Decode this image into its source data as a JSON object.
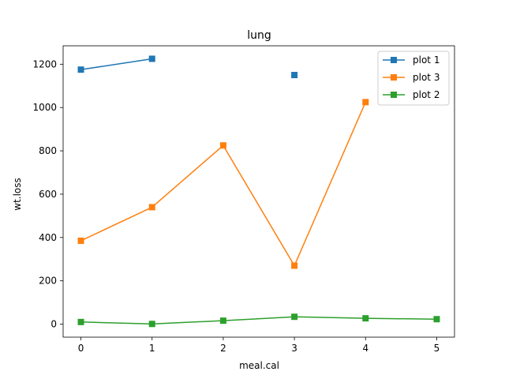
{
  "chart_data": {
    "type": "line",
    "title": "lung",
    "xlabel": "meal.cal",
    "ylabel": "wt.loss",
    "x": [
      0,
      1,
      2,
      3,
      4,
      5
    ],
    "xlim": [
      -0.25,
      5.25
    ],
    "ylim": [
      -60,
      1285
    ],
    "xticks": [
      0,
      1,
      2,
      3,
      4,
      5
    ],
    "yticks": [
      0,
      200,
      400,
      600,
      800,
      1000,
      1200
    ],
    "grid": false,
    "legend_position": "top-right",
    "series": [
      {
        "name": "plot 1",
        "color": "#1f77b4",
        "marker": "square",
        "values": [
          1175,
          1225,
          null,
          1150,
          null,
          null
        ]
      },
      {
        "name": "plot 3",
        "color": "#ff7f0e",
        "marker": "square",
        "values": [
          385,
          540,
          825,
          270,
          1025,
          null
        ]
      },
      {
        "name": "plot 2",
        "color": "#2ca02c",
        "marker": "square",
        "values": [
          10,
          1,
          16,
          34,
          27,
          23
        ]
      }
    ]
  }
}
